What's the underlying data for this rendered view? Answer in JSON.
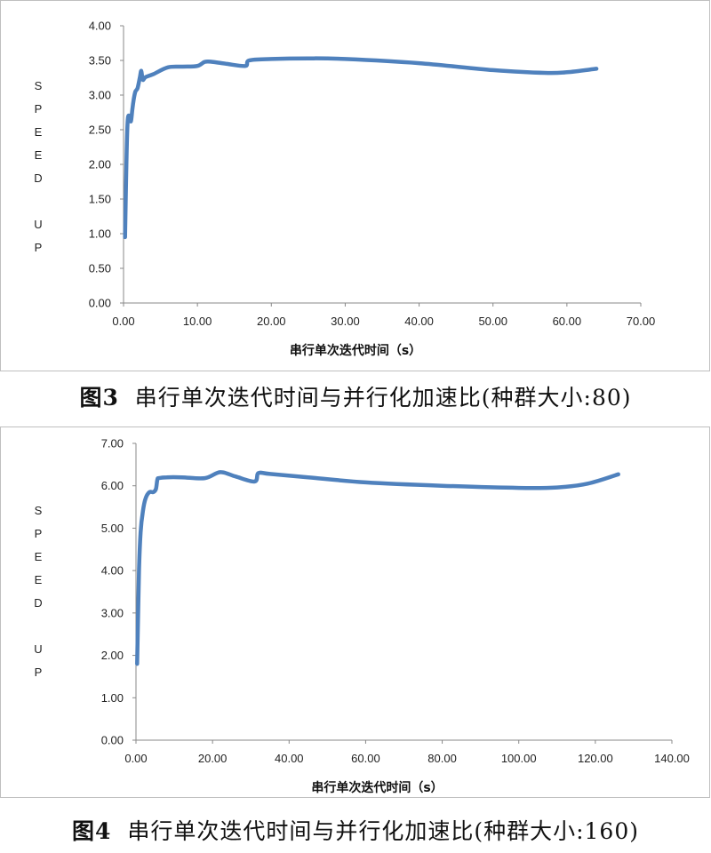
{
  "chart_data": [
    {
      "type": "line",
      "xlabel": "串行单次迭代时间（s）",
      "ylabel": "SPEED UP",
      "xlim": [
        0,
        70
      ],
      "ylim": [
        0,
        4
      ],
      "xticks": [
        "0.00",
        "10.00",
        "20.00",
        "30.00",
        "40.00",
        "50.00",
        "60.00",
        "70.00"
      ],
      "yticks": [
        "0.00",
        "0.50",
        "1.00",
        "1.50",
        "2.00",
        "2.50",
        "3.00",
        "3.50",
        "4.00"
      ],
      "grid": false,
      "line_color": "#4f81bd",
      "series": [
        {
          "x": [
            0.2,
            0.5,
            0.8,
            1.0,
            1.2,
            1.4,
            1.6,
            1.9,
            2.2,
            2.4,
            2.6,
            3.0,
            4.0,
            6.0,
            8.0,
            10.0,
            11.0,
            12.0,
            14.0,
            16.5,
            17.0,
            20.0,
            25.0,
            30.0,
            40.0,
            50.0,
            57.0,
            60.0,
            64.0
          ],
          "y": [
            0.95,
            2.5,
            2.7,
            2.62,
            2.8,
            2.95,
            3.05,
            3.1,
            3.25,
            3.35,
            3.22,
            3.26,
            3.3,
            3.4,
            3.41,
            3.42,
            3.48,
            3.48,
            3.45,
            3.42,
            3.5,
            3.52,
            3.53,
            3.52,
            3.46,
            3.36,
            3.32,
            3.33,
            3.38
          ]
        }
      ],
      "caption_label": "图3",
      "caption_text": "串行单次迭代时间与并行化加速比(种群大小:80)"
    },
    {
      "type": "line",
      "xlabel": "串行单次迭代时间（s）",
      "ylabel": "SPEED UP",
      "xlim": [
        0,
        140
      ],
      "ylim": [
        0,
        7
      ],
      "xticks": [
        "0.00",
        "20.00",
        "40.00",
        "60.00",
        "80.00",
        "100.00",
        "120.00",
        "140.00"
      ],
      "yticks": [
        "0.00",
        "1.00",
        "2.00",
        "3.00",
        "4.00",
        "5.00",
        "6.00",
        "7.00"
      ],
      "grid": false,
      "line_color": "#4f81bd",
      "series": [
        {
          "x": [
            0.3,
            0.8,
            1.2,
            1.8,
            2.5,
            3.5,
            4.5,
            5.2,
            5.6,
            6.0,
            8.0,
            12.0,
            18.0,
            22.0,
            26.0,
            31.0,
            32.0,
            35.0,
            45.0,
            60.0,
            80.0,
            100.0,
            110.0,
            118.0,
            126.0
          ],
          "y": [
            1.8,
            4.0,
            4.9,
            5.4,
            5.7,
            5.85,
            5.85,
            5.92,
            6.15,
            6.18,
            6.2,
            6.2,
            6.18,
            6.32,
            6.22,
            6.1,
            6.3,
            6.28,
            6.2,
            6.08,
            6.0,
            5.95,
            5.96,
            6.05,
            6.27
          ]
        }
      ],
      "caption_label": "图4",
      "caption_text": "串行单次迭代时间与并行化加速比(种群大小:160)"
    }
  ]
}
